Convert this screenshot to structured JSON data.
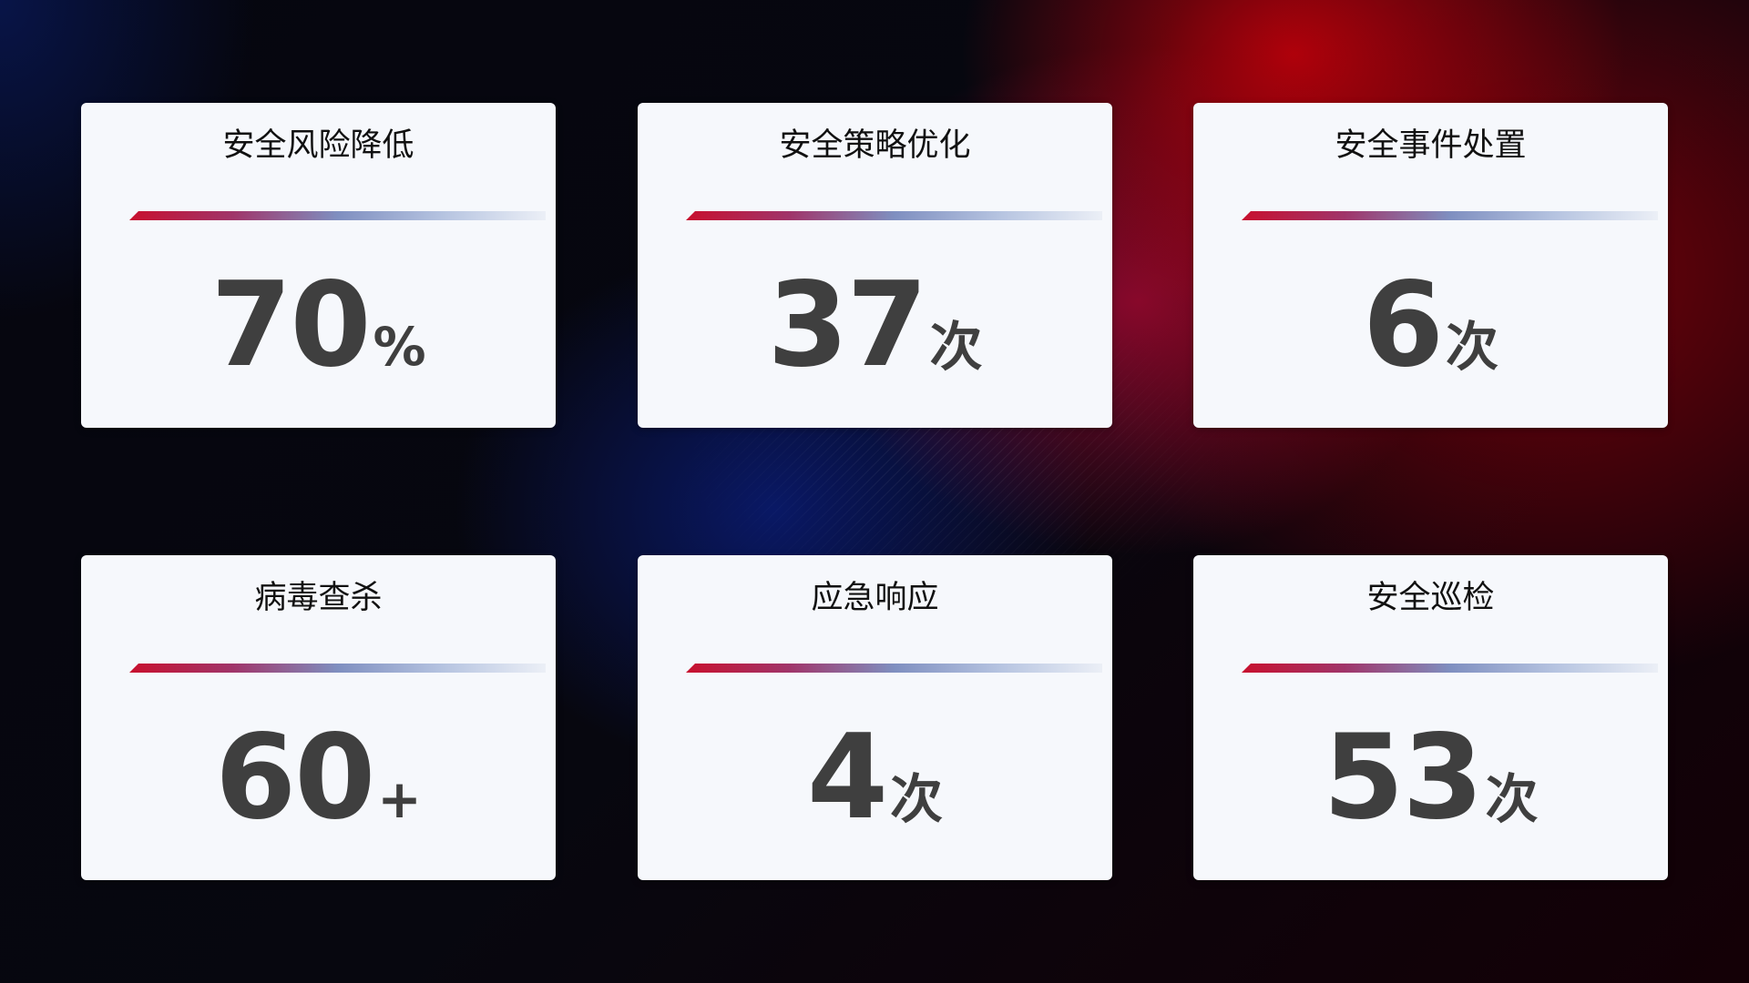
{
  "cards": [
    {
      "title": "安全风险降低",
      "value": "70",
      "unit": "%"
    },
    {
      "title": "安全策略优化",
      "value": "37",
      "unit": "次"
    },
    {
      "title": "安全事件处置",
      "value": "6",
      "unit": "次"
    },
    {
      "title": "病毒查杀",
      "value": "60",
      "unit": "+"
    },
    {
      "title": "应急响应",
      "value": "4",
      "unit": "次"
    },
    {
      "title": "安全巡检",
      "value": "53",
      "unit": "次"
    }
  ],
  "colors": {
    "accent_red": "#c8102e",
    "accent_blue": "#7f8fc0",
    "card_bg": "#f6f8fc",
    "value_text": "#3f3f3f"
  }
}
